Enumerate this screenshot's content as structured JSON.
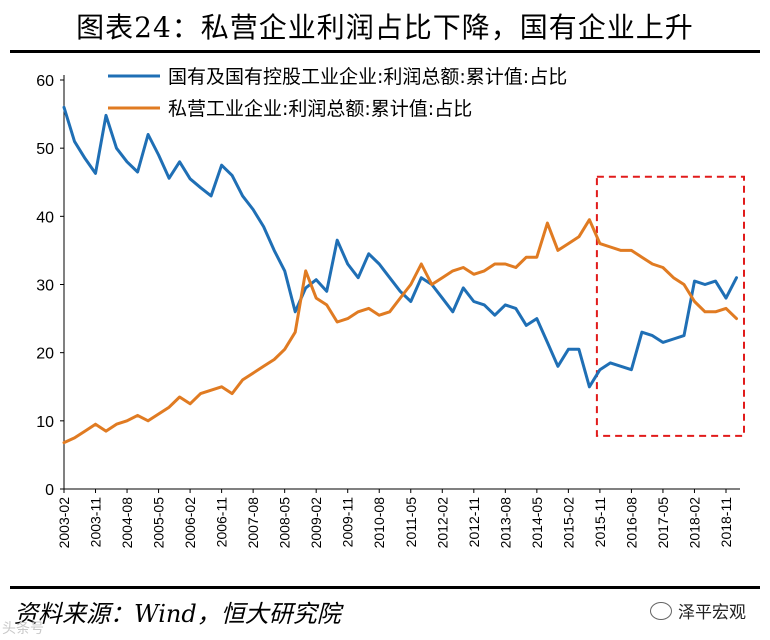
{
  "header": {
    "title": "图表24：私营企业利润占比下降，国有企业上升"
  },
  "footer": {
    "source": "资料来源：Wind，恒大研究院",
    "brand": "泽平宏观",
    "watermark": "头条号"
  },
  "chart_data": {
    "type": "line",
    "title": "",
    "xlabel": "",
    "ylabel": "",
    "ylim": [
      0,
      60
    ],
    "y_ticks": [
      0,
      10,
      20,
      30,
      40,
      50,
      60
    ],
    "x_ticks": [
      "2003-02",
      "2003-11",
      "2004-08",
      "2005-05",
      "2006-02",
      "2006-11",
      "2007-08",
      "2008-05",
      "2009-02",
      "2009-11",
      "2010-08",
      "2011-05",
      "2012-02",
      "2012-11",
      "2013-08",
      "2014-05",
      "2015-02",
      "2015-11",
      "2016-08",
      "2017-05",
      "2018-02",
      "2018-11"
    ],
    "legend_position": "top",
    "grid": false,
    "annotation": "red dashed box highlighting 2015-11 to 2019-03",
    "highlight_range": [
      "2015-11",
      "2019-03"
    ],
    "series": [
      {
        "name": "国有及国有控股工业企业:利润总额:累计值:占比",
        "color": "#1f6fb5",
        "x": [
          "2003-02",
          "2003-05",
          "2003-08",
          "2003-11",
          "2004-02",
          "2004-05",
          "2004-08",
          "2004-11",
          "2005-02",
          "2005-05",
          "2005-08",
          "2005-11",
          "2006-02",
          "2006-05",
          "2006-08",
          "2006-11",
          "2007-02",
          "2007-05",
          "2007-08",
          "2007-11",
          "2008-02",
          "2008-05",
          "2008-08",
          "2008-11",
          "2009-02",
          "2009-05",
          "2009-08",
          "2009-11",
          "2010-02",
          "2010-05",
          "2010-08",
          "2010-11",
          "2011-02",
          "2011-05",
          "2011-08",
          "2011-11",
          "2012-02",
          "2012-05",
          "2012-08",
          "2012-11",
          "2013-02",
          "2013-05",
          "2013-08",
          "2013-11",
          "2014-02",
          "2014-05",
          "2014-08",
          "2014-11",
          "2015-02",
          "2015-05",
          "2015-08",
          "2015-11",
          "2016-02",
          "2016-05",
          "2016-08",
          "2016-11",
          "2017-02",
          "2017-05",
          "2017-08",
          "2017-11",
          "2018-02",
          "2018-05",
          "2018-08",
          "2018-11",
          "2019-02"
        ],
        "values": [
          56,
          51,
          48.5,
          46.3,
          54.8,
          50,
          48,
          46.5,
          52,
          49,
          45.6,
          48,
          45.5,
          44.2,
          43,
          47.5,
          46,
          43,
          41,
          38.5,
          35,
          32,
          26,
          29.5,
          30.7,
          29,
          36.5,
          33,
          31,
          34.5,
          33,
          31,
          29,
          27.5,
          31,
          30,
          28,
          26,
          29.5,
          27.5,
          27,
          25.5,
          27,
          26.5,
          24,
          25,
          21.5,
          18,
          20.5,
          20.5,
          15,
          17.5,
          18.5,
          18,
          17.5,
          23,
          22.5,
          21.5,
          22,
          22.5,
          30.5,
          30,
          30.5,
          28,
          31
        ]
      },
      {
        "name": "私营工业企业:利润总额:累计值:占比",
        "color": "#e07b22",
        "x": [
          "2003-02",
          "2003-05",
          "2003-08",
          "2003-11",
          "2004-02",
          "2004-05",
          "2004-08",
          "2004-11",
          "2005-02",
          "2005-05",
          "2005-08",
          "2005-11",
          "2006-02",
          "2006-05",
          "2006-08",
          "2006-11",
          "2007-02",
          "2007-05",
          "2007-08",
          "2007-11",
          "2008-02",
          "2008-05",
          "2008-08",
          "2008-11",
          "2009-02",
          "2009-05",
          "2009-08",
          "2009-11",
          "2010-02",
          "2010-05",
          "2010-08",
          "2010-11",
          "2011-02",
          "2011-05",
          "2011-08",
          "2011-11",
          "2012-02",
          "2012-05",
          "2012-08",
          "2012-11",
          "2013-02",
          "2013-05",
          "2013-08",
          "2013-11",
          "2014-02",
          "2014-05",
          "2014-08",
          "2014-11",
          "2015-02",
          "2015-05",
          "2015-08",
          "2015-11",
          "2016-02",
          "2016-05",
          "2016-08",
          "2016-11",
          "2017-02",
          "2017-05",
          "2017-08",
          "2017-11",
          "2018-02",
          "2018-05",
          "2018-08",
          "2018-11",
          "2019-02"
        ],
        "values": [
          6.8,
          7.5,
          8.5,
          9.5,
          8.5,
          9.5,
          10,
          10.8,
          10,
          11,
          12,
          13.5,
          12.5,
          14,
          14.5,
          15,
          14,
          16,
          17,
          18,
          19,
          20.5,
          23,
          32,
          28,
          27,
          24.5,
          25,
          26,
          26.5,
          25.5,
          26,
          28,
          30,
          33,
          30,
          31,
          32,
          32.5,
          31.5,
          32,
          33,
          33,
          32.5,
          34,
          34,
          39,
          35,
          36,
          37,
          39.5,
          36,
          35.5,
          35,
          35,
          34,
          33,
          32.5,
          31,
          30,
          27.5,
          26,
          26,
          26.5,
          25
        ]
      }
    ]
  }
}
